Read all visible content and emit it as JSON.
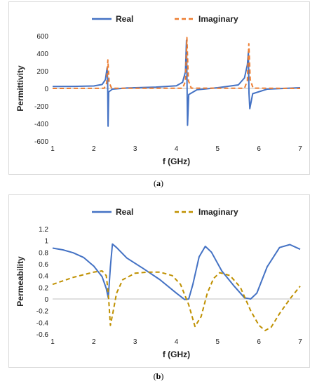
{
  "colors": {
    "real": "#4472C4",
    "imag_a": "#ED7D31",
    "imag_b": "#BF9000",
    "axis": "#bfbfbf"
  },
  "captions": {
    "a_open": "(",
    "a_letter": "a",
    "a_close": ")",
    "b_open": "(",
    "b_letter": "b",
    "b_close": ")"
  },
  "chart_data": [
    {
      "type": "line",
      "xlabel": "f (GHz)",
      "ylabel": "Permittivity",
      "xlim": [
        1,
        7
      ],
      "ylim": [
        -600,
        600
      ],
      "x_ticks": [
        1,
        2,
        3,
        4,
        5,
        6,
        7
      ],
      "y_ticks": [
        -600,
        -400,
        -200,
        0,
        200,
        400,
        600
      ],
      "grid": false,
      "legend_position": "top",
      "series": [
        {
          "name": "Real",
          "style": "solid",
          "x": [
            1.0,
            1.5,
            2.0,
            2.2,
            2.28,
            2.32,
            2.335,
            2.345,
            2.36,
            2.45,
            2.8,
            3.5,
            4.0,
            4.15,
            4.22,
            4.245,
            4.26,
            4.27,
            4.3,
            4.5,
            5.0,
            5.5,
            5.65,
            5.72,
            5.745,
            5.76,
            5.78,
            5.85,
            6.2,
            7.0
          ],
          "values": [
            22,
            23,
            28,
            45,
            100,
            235,
            95,
            -430,
            -40,
            -8,
            5,
            15,
            30,
            70,
            190,
            550,
            -20,
            -420,
            -70,
            -15,
            8,
            40,
            120,
            270,
            420,
            -50,
            -230,
            -60,
            -8,
            8
          ]
        },
        {
          "name": "Imaginary",
          "style": "dashed",
          "x": [
            1.0,
            2.25,
            2.31,
            2.34,
            2.37,
            2.43,
            4.15,
            4.22,
            4.255,
            4.29,
            4.36,
            5.65,
            5.72,
            5.755,
            5.79,
            5.86,
            7.0
          ],
          "values": [
            0,
            2,
            60,
            325,
            70,
            2,
            2,
            80,
            580,
            90,
            3,
            2,
            90,
            510,
            100,
            3,
            0
          ]
        }
      ]
    },
    {
      "type": "line",
      "xlabel": "f (GHz)",
      "ylabel": "Permeability",
      "xlim": [
        1,
        7
      ],
      "ylim": [
        -0.6,
        1.2
      ],
      "x_ticks": [
        1,
        2,
        3,
        4,
        5,
        6,
        7
      ],
      "y_ticks": [
        -0.6,
        -0.4,
        -0.2,
        0,
        0.2,
        0.4,
        0.6,
        0.8,
        1,
        1.2
      ],
      "grid": false,
      "legend_position": "top",
      "series": [
        {
          "name": "Real",
          "style": "solid",
          "x": [
            1.0,
            1.25,
            1.5,
            1.75,
            2.0,
            2.2,
            2.3,
            2.35,
            2.4,
            2.45,
            2.55,
            2.8,
            3.2,
            3.6,
            4.0,
            4.2,
            4.3,
            4.4,
            4.55,
            4.7,
            4.85,
            5.1,
            5.4,
            5.65,
            5.8,
            5.95,
            6.2,
            6.5,
            6.75,
            7.0
          ],
          "values": [
            0.87,
            0.84,
            0.79,
            0.71,
            0.56,
            0.38,
            0.18,
            0.02,
            0.55,
            0.94,
            0.88,
            0.7,
            0.52,
            0.33,
            0.1,
            -0.01,
            0.0,
            0.25,
            0.72,
            0.9,
            0.8,
            0.48,
            0.22,
            0.02,
            0.0,
            0.1,
            0.55,
            0.88,
            0.93,
            0.85
          ]
        },
        {
          "name": "Imaginary",
          "style": "dashed",
          "x": [
            1.0,
            1.5,
            2.0,
            2.2,
            2.3,
            2.35,
            2.4,
            2.45,
            2.55,
            2.7,
            3.0,
            3.3,
            3.6,
            3.9,
            4.1,
            4.3,
            4.45,
            4.6,
            4.75,
            4.9,
            5.05,
            5.3,
            5.55,
            5.8,
            6.0,
            6.15,
            6.3,
            6.5,
            6.75,
            7.0
          ],
          "values": [
            0.25,
            0.37,
            0.46,
            0.48,
            0.4,
            0.1,
            -0.45,
            -0.28,
            0.1,
            0.33,
            0.44,
            0.46,
            0.46,
            0.4,
            0.25,
            -0.1,
            -0.47,
            -0.3,
            0.1,
            0.35,
            0.45,
            0.4,
            0.2,
            -0.2,
            -0.45,
            -0.54,
            -0.48,
            -0.25,
            0.0,
            0.22
          ]
        }
      ]
    }
  ]
}
